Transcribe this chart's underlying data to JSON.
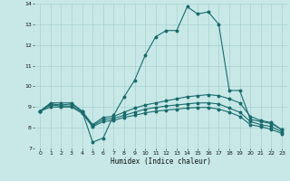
{
  "xlabel": "Humidex (Indice chaleur)",
  "background_color": "#c8e8e8",
  "grid_color": "#a8d0d0",
  "line_color": "#1a6b6b",
  "xlim": [
    -0.5,
    23.5
  ],
  "ylim": [
    7,
    14
  ],
  "xticks": [
    0,
    1,
    2,
    3,
    4,
    5,
    6,
    7,
    8,
    9,
    10,
    11,
    12,
    13,
    14,
    15,
    16,
    17,
    18,
    19,
    20,
    21,
    22,
    23
  ],
  "yticks": [
    7,
    8,
    9,
    10,
    11,
    12,
    13,
    14
  ],
  "curve1_x": [
    0,
    1,
    2,
    3,
    4,
    5,
    6,
    7,
    8,
    9,
    10,
    11,
    12,
    13,
    14,
    15,
    16,
    17,
    18,
    19,
    20,
    21,
    22,
    23
  ],
  "curve1_y": [
    8.8,
    9.2,
    9.2,
    9.2,
    8.8,
    7.3,
    7.5,
    8.6,
    9.5,
    10.3,
    11.5,
    12.4,
    12.7,
    12.7,
    13.85,
    13.5,
    13.6,
    13.0,
    9.8,
    9.8,
    8.4,
    8.3,
    8.2,
    7.9
  ],
  "curve2_x": [
    0,
    1,
    2,
    3,
    4,
    5,
    6,
    7,
    8,
    9,
    10,
    11,
    12,
    13,
    14,
    15,
    16,
    17,
    18,
    19,
    20,
    21,
    22,
    23
  ],
  "curve2_y": [
    8.8,
    9.15,
    9.1,
    9.15,
    8.8,
    8.15,
    8.5,
    8.55,
    8.75,
    8.95,
    9.1,
    9.2,
    9.3,
    9.4,
    9.5,
    9.55,
    9.6,
    9.55,
    9.4,
    9.2,
    8.55,
    8.35,
    8.25,
    7.9
  ],
  "curve3_x": [
    0,
    1,
    2,
    3,
    4,
    5,
    6,
    7,
    8,
    9,
    10,
    11,
    12,
    13,
    14,
    15,
    16,
    17,
    18,
    19,
    20,
    21,
    22,
    23
  ],
  "curve3_y": [
    8.8,
    9.1,
    9.05,
    9.05,
    8.75,
    8.1,
    8.4,
    8.45,
    8.6,
    8.75,
    8.9,
    8.98,
    9.05,
    9.1,
    9.15,
    9.2,
    9.2,
    9.15,
    8.95,
    8.75,
    8.3,
    8.15,
    8.05,
    7.8
  ],
  "curve4_x": [
    0,
    1,
    2,
    3,
    4,
    5,
    6,
    7,
    8,
    9,
    10,
    11,
    12,
    13,
    14,
    15,
    16,
    17,
    18,
    19,
    20,
    21,
    22,
    23
  ],
  "curve4_y": [
    8.8,
    9.0,
    9.0,
    9.0,
    8.7,
    8.05,
    8.3,
    8.35,
    8.5,
    8.6,
    8.72,
    8.8,
    8.85,
    8.9,
    8.95,
    8.98,
    8.98,
    8.9,
    8.75,
    8.55,
    8.15,
    8.05,
    7.92,
    7.72
  ]
}
